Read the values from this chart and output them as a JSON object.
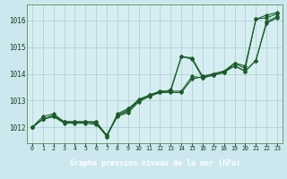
{
  "bg_color": "#cce8ee",
  "plot_bg_color": "#d6eef2",
  "footer_bg_color": "#2d6b3c",
  "grid_color": "#aaccd4",
  "line_color": "#1a5c28",
  "xlabel": "Graphe pression niveau de la mer (hPa)",
  "xlabel_color": "#ffffff",
  "ylabel_ticks": [
    1012,
    1013,
    1014,
    1015,
    1016
  ],
  "xtick_labels": [
    "0",
    "1",
    "2",
    "3",
    "4",
    "5",
    "6",
    "7",
    "8",
    "9",
    "10",
    "11",
    "12",
    "13",
    "14",
    "15",
    "16",
    "17",
    "18",
    "19",
    "20",
    "21",
    "22",
    "23"
  ],
  "xlim": [
    -0.5,
    23.5
  ],
  "ylim": [
    1011.4,
    1016.6
  ],
  "lines": [
    [
      1012.0,
      1012.4,
      1012.5,
      1012.2,
      1012.2,
      1012.2,
      1012.2,
      1011.65,
      1012.5,
      1012.7,
      1013.0,
      1013.2,
      1013.3,
      1013.4,
      1014.65,
      1014.6,
      1013.9,
      1014.0,
      1014.1,
      1014.4,
      1014.3,
      1016.05,
      1016.2,
      1016.3
    ],
    [
      1012.0,
      1012.3,
      1012.4,
      1012.2,
      1012.2,
      1012.2,
      1012.15,
      1011.65,
      1012.45,
      1012.6,
      1013.0,
      1013.2,
      1013.35,
      1013.35,
      1013.35,
      1013.9,
      1013.85,
      1013.95,
      1014.05,
      1014.3,
      1014.1,
      1014.5,
      1015.95,
      1016.15
    ],
    [
      1012.0,
      1012.3,
      1012.4,
      1012.15,
      1012.15,
      1012.15,
      1012.1,
      1011.7,
      1012.4,
      1012.55,
      1012.95,
      1013.15,
      1013.3,
      1013.3,
      1013.3,
      1013.8,
      1013.9,
      1014.0,
      1014.1,
      1014.3,
      1014.1,
      1014.5,
      1015.9,
      1016.1
    ],
    [
      1012.0,
      1012.3,
      1012.45,
      1012.2,
      1012.2,
      1012.2,
      1012.2,
      1011.7,
      1012.45,
      1012.65,
      1013.05,
      1013.2,
      1013.35,
      1013.35,
      1014.65,
      1014.55,
      1013.85,
      1013.95,
      1014.05,
      1014.4,
      1014.2,
      1016.05,
      1016.1,
      1016.25
    ]
  ]
}
